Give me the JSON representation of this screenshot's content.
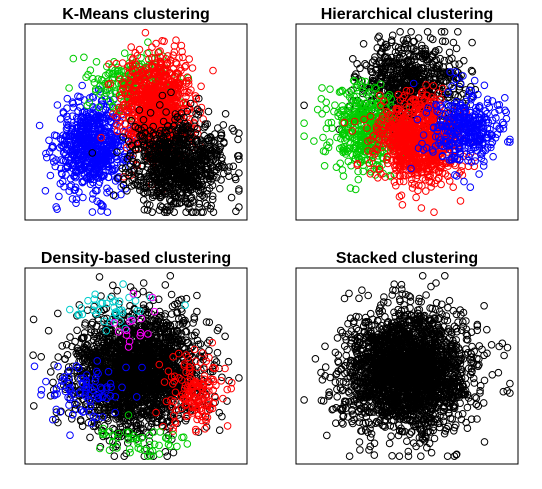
{
  "chart_data": [
    {
      "type": "scatter",
      "title": "K-Means clustering",
      "xlabel": "",
      "ylabel": "",
      "xlim": [
        0,
        1
      ],
      "ylim": [
        0,
        1
      ],
      "grid": false,
      "axes_visible": false,
      "marker": "open-circle",
      "series": [
        {
          "color": "#0000FF",
          "approx_points": 700,
          "center": [
            0.29,
            0.37
          ],
          "spread": [
            0.085,
            0.12
          ]
        },
        {
          "color": "#00CC00",
          "approx_points": 200,
          "center": [
            0.5,
            0.72
          ],
          "spread": [
            0.1,
            0.08
          ]
        },
        {
          "color": "#FF0000",
          "approx_points": 900,
          "center": [
            0.6,
            0.58
          ],
          "spread": [
            0.085,
            0.14
          ]
        },
        {
          "color": "#000000",
          "approx_points": 900,
          "center": [
            0.7,
            0.27
          ],
          "spread": [
            0.11,
            0.12
          ]
        }
      ]
    },
    {
      "type": "scatter",
      "title": "Hierarchical clustering",
      "xlabel": "",
      "ylabel": "",
      "xlim": [
        0,
        1
      ],
      "ylim": [
        0,
        1
      ],
      "grid": false,
      "axes_visible": false,
      "marker": "open-circle",
      "series": [
        {
          "color": "#000000",
          "approx_points": 700,
          "center": [
            0.52,
            0.7
          ],
          "spread": [
            0.12,
            0.12
          ]
        },
        {
          "color": "#00CC00",
          "approx_points": 450,
          "center": [
            0.3,
            0.45
          ],
          "spread": [
            0.09,
            0.11
          ]
        },
        {
          "color": "#FF0000",
          "approx_points": 900,
          "center": [
            0.55,
            0.4
          ],
          "spread": [
            0.1,
            0.12
          ]
        },
        {
          "color": "#0000FF",
          "approx_points": 350,
          "center": [
            0.78,
            0.46
          ],
          "spread": [
            0.09,
            0.1
          ]
        }
      ]
    },
    {
      "type": "scatter",
      "title": "Density-based clustering",
      "xlabel": "",
      "ylabel": "",
      "xlim": [
        0,
        1
      ],
      "ylim": [
        0,
        1
      ],
      "grid": false,
      "axes_visible": false,
      "marker": "open-circle",
      "series": [
        {
          "color": "#000000",
          "approx_points": 2300,
          "center": [
            0.5,
            0.47
          ],
          "spread": [
            0.15,
            0.16
          ]
        },
        {
          "color": "#FF0000",
          "approx_points": 160,
          "center": [
            0.78,
            0.36
          ],
          "spread": [
            0.07,
            0.1
          ]
        },
        {
          "color": "#0000FF",
          "approx_points": 90,
          "center": [
            0.25,
            0.35
          ],
          "spread": [
            0.09,
            0.08
          ]
        },
        {
          "color": "#00CCCC",
          "approx_points": 40,
          "center": [
            0.4,
            0.82
          ],
          "spread": [
            0.12,
            0.05
          ]
        },
        {
          "color": "#00CC00",
          "approx_points": 50,
          "center": [
            0.55,
            0.09
          ],
          "spread": [
            0.12,
            0.04
          ]
        },
        {
          "color": "#FF00FF",
          "approx_points": 15,
          "center": [
            0.5,
            0.72
          ],
          "spread": [
            0.08,
            0.06
          ]
        }
      ]
    },
    {
      "type": "scatter",
      "title": "Stacked clustering",
      "xlabel": "",
      "ylabel": "",
      "xlim": [
        0,
        1
      ],
      "ylim": [
        0,
        1
      ],
      "grid": false,
      "axes_visible": false,
      "marker": "open-circle",
      "series": [
        {
          "color": "#000000",
          "approx_points": 2600,
          "center": [
            0.5,
            0.47
          ],
          "spread": [
            0.15,
            0.16
          ]
        }
      ]
    }
  ]
}
